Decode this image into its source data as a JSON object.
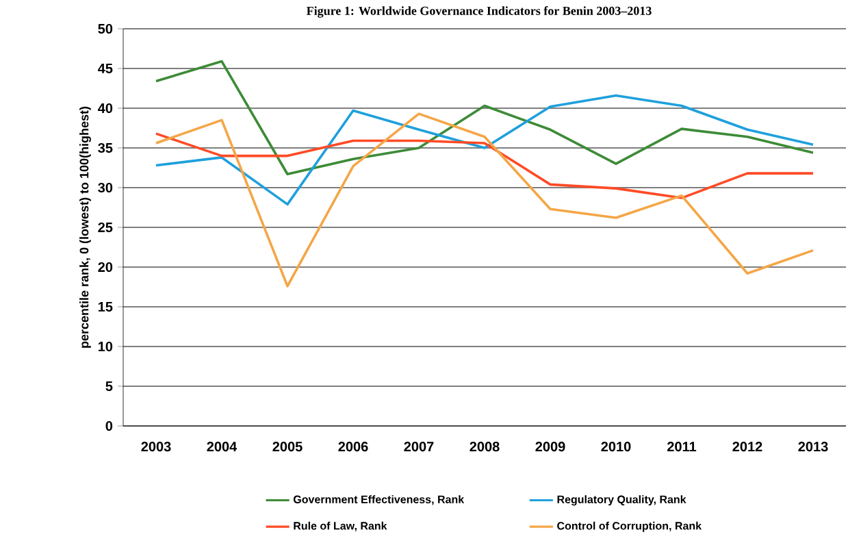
{
  "chart_data": {
    "type": "line",
    "title": "Figure 1: Worldwide Governance Indicators for Benin 2003–2013",
    "ylabel": "percentile rank, 0 (lowest) to 100(highest)",
    "categories": [
      "2003",
      "2004",
      "2005",
      "2006",
      "2007",
      "2008",
      "2009",
      "2010",
      "2011",
      "2012",
      "2013"
    ],
    "series": [
      {
        "name": "Government Effectiveness, Rank",
        "color": "#3d8b37",
        "values": [
          43.4,
          45.9,
          31.7,
          33.6,
          35.0,
          40.3,
          37.3,
          33.0,
          37.4,
          36.4,
          34.4
        ]
      },
      {
        "name": "Regulatory Quality, Rank",
        "color": "#1fa0dc",
        "values": [
          32.8,
          33.8,
          27.9,
          39.7,
          37.3,
          35.0,
          40.2,
          41.6,
          40.3,
          37.3,
          35.4
        ]
      },
      {
        "name": "Rule of Law, Rank",
        "color": "#ff4b26",
        "values": [
          36.8,
          34.0,
          34.0,
          35.9,
          35.9,
          35.6,
          30.4,
          29.9,
          28.7,
          31.8,
          31.8
        ]
      },
      {
        "name": "Control of Corruption, Rank",
        "color": "#f4a646",
        "values": [
          35.6,
          38.5,
          17.6,
          32.7,
          39.3,
          36.4,
          27.3,
          26.2,
          29.0,
          19.2,
          22.1
        ]
      }
    ],
    "ylim": [
      0,
      50
    ],
    "yticks": [
      0,
      5,
      10,
      15,
      20,
      25,
      30,
      35,
      40,
      45,
      50
    ],
    "grid": "y",
    "legend": "bottom",
    "marker": "none",
    "line_style": "solid"
  }
}
